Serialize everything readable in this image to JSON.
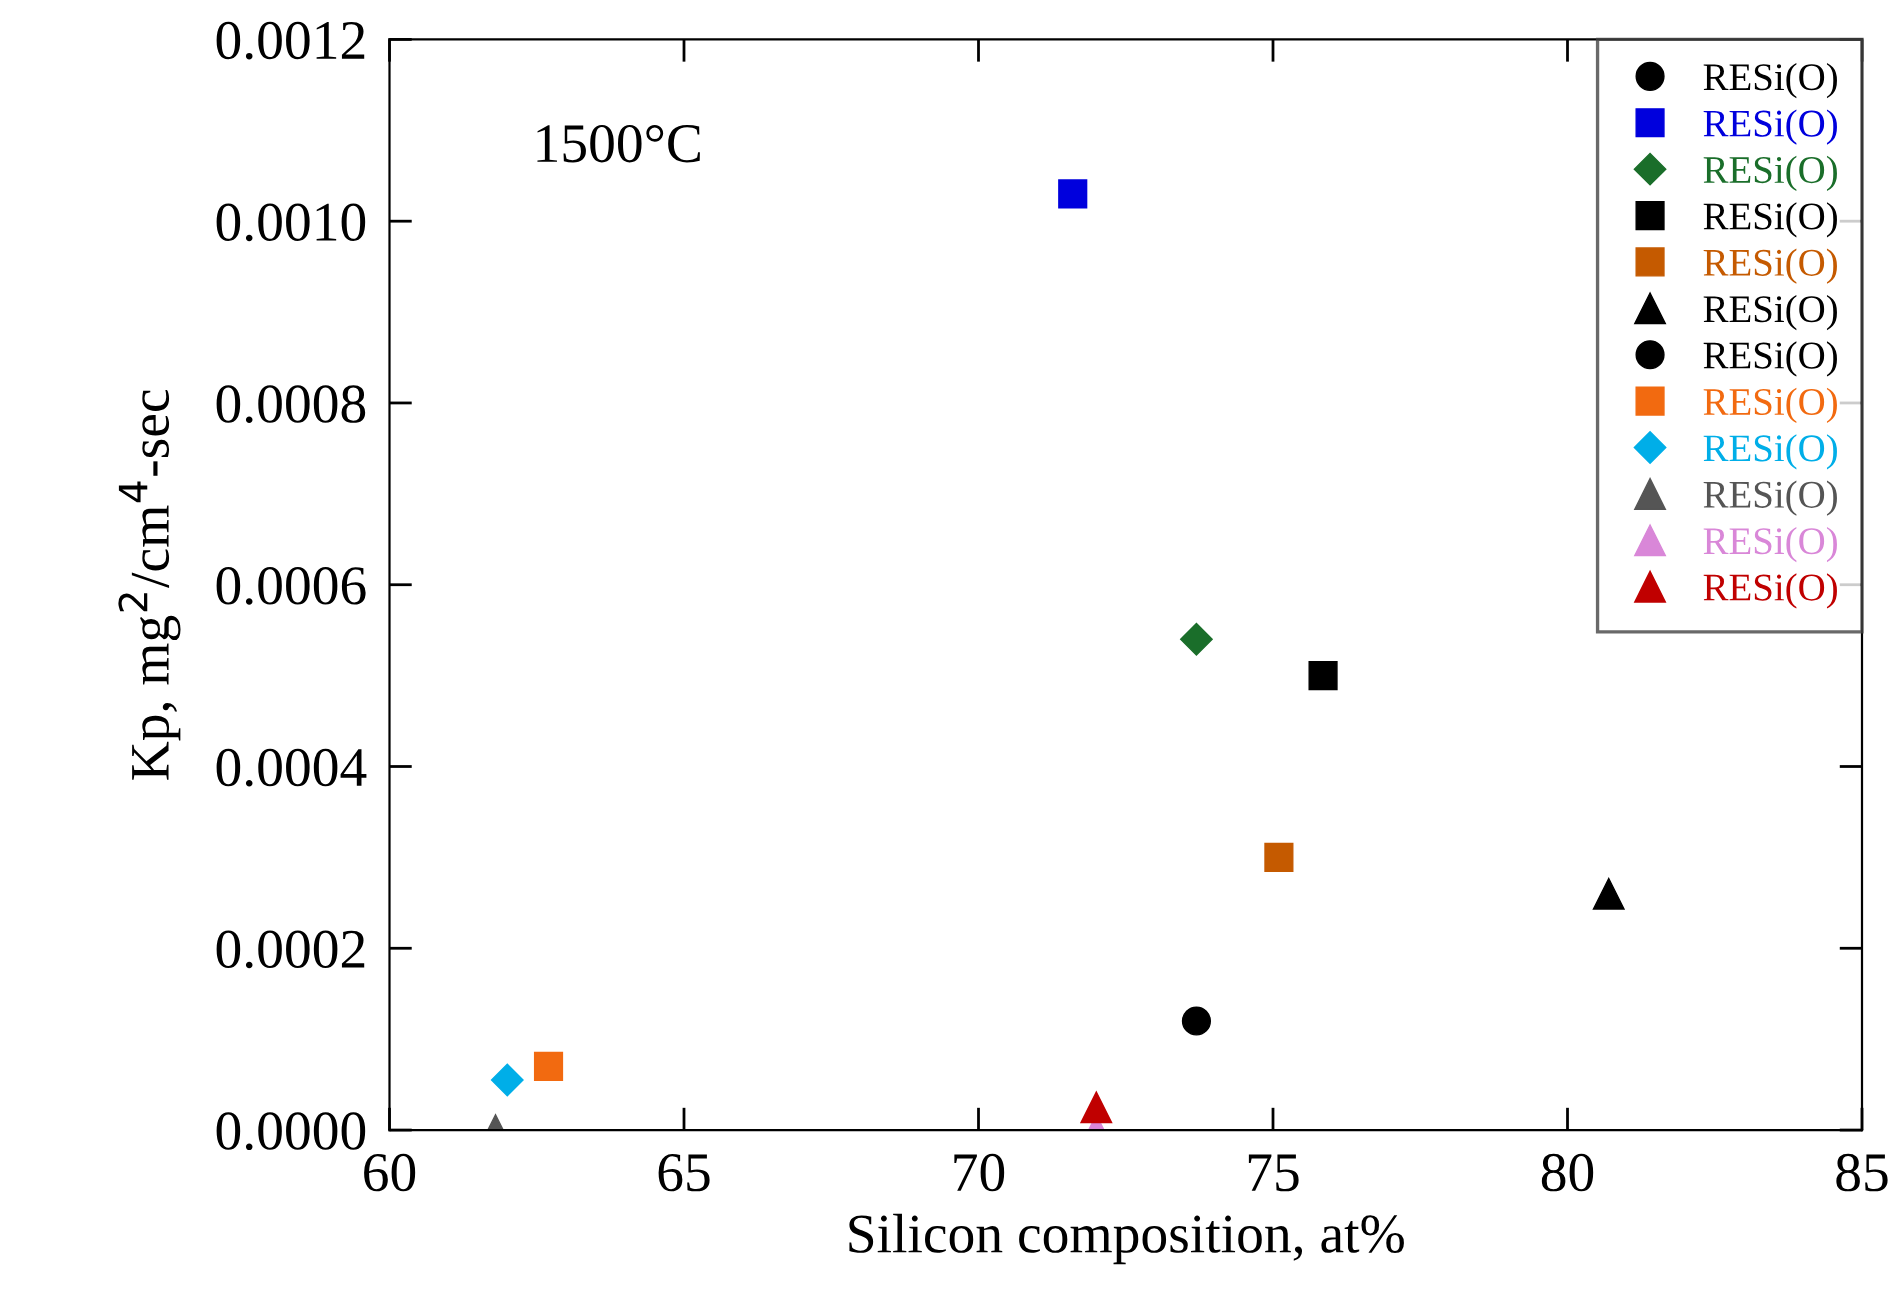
{
  "chart_data": {
    "type": "scatter",
    "xlabel": "Silicon composition, at%",
    "ylabel": "Kp, mg$^{2}$/cm$^{4}$-sec",
    "annotations": [
      "1500°C"
    ],
    "xlim": [
      60,
      85
    ],
    "xticks": [
      60,
      65,
      70,
      75,
      80,
      85
    ],
    "ylim": [
      0,
      0.0012
    ],
    "yticks": [
      {
        "value": 0,
        "label": "0.0000"
      },
      0.0002,
      0.0004,
      0.0006,
      0.0008,
      {
        "value": 0.001,
        "label": "0.0010"
      },
      0.0012
    ],
    "legend": "top right",
    "grid": false,
    "series": [
      {
        "name": "RESi(O)",
        "color": "#000000",
        "marker": "circle",
        "x": [
          73.7
        ],
        "values": [
          0.00012
        ]
      },
      {
        "name": "RESi(O)",
        "color": "#0000dd",
        "marker": "square",
        "x": [
          71.6
        ],
        "values": [
          0.00103
        ]
      },
      {
        "name": "RESi(O)",
        "color": "#1a6e2a",
        "marker": "diamond",
        "x": [
          73.7
        ],
        "values": [
          0.00054
        ]
      },
      {
        "name": "RESi(O)",
        "color": "#000000",
        "marker": "square",
        "x": [
          75.85
        ],
        "values": [
          0.0005
        ]
      },
      {
        "name": "RESi(O)",
        "color": "#c55a00",
        "marker": "square",
        "x": [
          75.1
        ],
        "values": [
          0.0003
        ]
      },
      {
        "name": "RESi(O)",
        "color": "#000000",
        "marker": "triangle",
        "x": [
          80.7
        ],
        "values": [
          0.00026
        ]
      },
      {
        "name": "RESi(O)",
        "color": "#000000",
        "marker": "circle",
        "x": [
          null
        ],
        "values": [
          null
        ]
      },
      {
        "name": "RESi(O)",
        "color": "#f26a10",
        "marker": "square",
        "x": [
          62.7
        ],
        "values": [
          7e-05
        ]
      },
      {
        "name": "RESi(O)",
        "color": "#00aee8",
        "marker": "diamond",
        "x": [
          62.0
        ],
        "values": [
          5.5e-05
        ]
      },
      {
        "name": "RESi(O)",
        "color": "#555555",
        "marker": "triangle",
        "x": [
          61.8
        ],
        "values": [
          0
        ]
      },
      {
        "name": "RESi(O)",
        "color": "#d987d8",
        "marker": "triangle",
        "x": [
          72.0
        ],
        "values": [
          0
        ]
      },
      {
        "name": "RESi(O)",
        "color": "#c00000",
        "marker": "triangle",
        "x": [
          72.0
        ],
        "values": [
          2.5e-05
        ]
      }
    ]
  }
}
